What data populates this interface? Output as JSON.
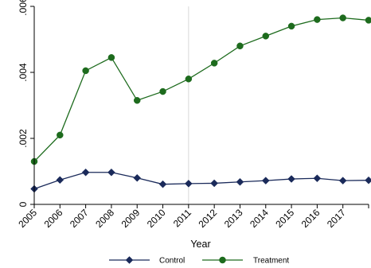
{
  "chart_data": {
    "type": "line",
    "title": "",
    "xlabel": "Year",
    "ylabel": "",
    "x": [
      2005,
      2006,
      2007,
      2008,
      2009,
      2010,
      2011,
      2012,
      2013,
      2014,
      2015,
      2016,
      2017,
      2018
    ],
    "x_tick_labels": [
      "2005",
      "2006",
      "2007",
      "2008",
      "2009",
      "2010",
      "2011",
      "2012",
      "2013",
      "2014",
      "2015",
      "2016",
      "2017"
    ],
    "y_ticks": [
      0,
      0.002,
      0.004,
      0.006
    ],
    "y_tick_labels": [
      "0",
      ".002",
      ".004",
      ".006"
    ],
    "xlim": [
      2005,
      2018
    ],
    "ylim": [
      0,
      0.006
    ],
    "reference_line_x": 2011,
    "grid": false,
    "legend_position": "bottom",
    "series": [
      {
        "name": "Control",
        "color": "#1a2a5a",
        "marker": "diamond",
        "values": [
          0.00047,
          0.00074,
          0.00097,
          0.00097,
          0.0008,
          0.00061,
          0.00063,
          0.00064,
          0.00068,
          0.00072,
          0.00077,
          0.00079,
          0.00072,
          0.00073
        ]
      },
      {
        "name": "Treatment",
        "color": "#1d6b1d",
        "marker": "circle",
        "values": [
          0.0013,
          0.0021,
          0.00405,
          0.00445,
          0.00315,
          0.00342,
          0.0038,
          0.00428,
          0.0048,
          0.0051,
          0.0054,
          0.0056,
          0.00565,
          0.00558
        ]
      }
    ]
  }
}
